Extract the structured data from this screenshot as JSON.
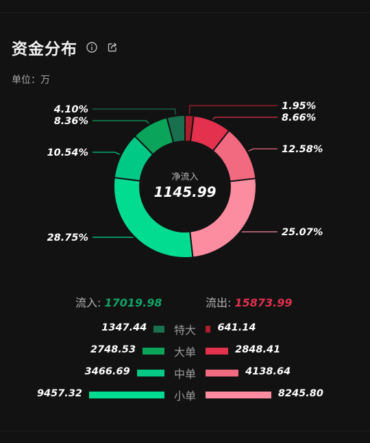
{
  "header": {
    "title": "资金分布",
    "info_icon": "info-icon",
    "share_icon": "share-icon"
  },
  "unit_label": "单位：万",
  "center": {
    "label": "净流入",
    "value": "1145.99"
  },
  "totals": {
    "inflow_label": "流入: ",
    "inflow_value": "17019.98",
    "outflow_label": "流出: ",
    "outflow_value": "15873.99"
  },
  "colors": {
    "in_super": "#19704f",
    "in_large": "#0aa55b",
    "in_medium": "#00c885",
    "in_small": "#02dc91",
    "out_super": "#b01e2e",
    "out_large": "#e3314e",
    "out_medium": "#f26a80",
    "out_small": "#fc8c9f"
  },
  "rows": [
    {
      "category": "特大",
      "inflow": "1347.44",
      "outflow": "641.14"
    },
    {
      "category": "大单",
      "inflow": "2748.53",
      "outflow": "2848.41"
    },
    {
      "category": "中单",
      "inflow": "3466.69",
      "outflow": "4138.64"
    },
    {
      "category": "小单",
      "inflow": "9457.32",
      "outflow": "8245.80"
    }
  ],
  "chart_data": {
    "type": "pie",
    "slices": [
      {
        "label": "1.95%",
        "value": 1.95,
        "color": "#b01e2e"
      },
      {
        "label": "8.66%",
        "value": 8.66,
        "color": "#e3314e"
      },
      {
        "label": "12.58%",
        "value": 12.58,
        "color": "#f26a80"
      },
      {
        "label": "25.07%",
        "value": 25.07,
        "color": "#fc8c9f"
      },
      {
        "label": "28.75%",
        "value": 28.75,
        "color": "#02dc91"
      },
      {
        "label": "10.54%",
        "value": 10.54,
        "color": "#00c885"
      },
      {
        "label": "8.36%",
        "value": 8.36,
        "color": "#0aa55b"
      },
      {
        "label": "4.10%",
        "value": 4.1,
        "color": "#19704f"
      }
    ]
  }
}
